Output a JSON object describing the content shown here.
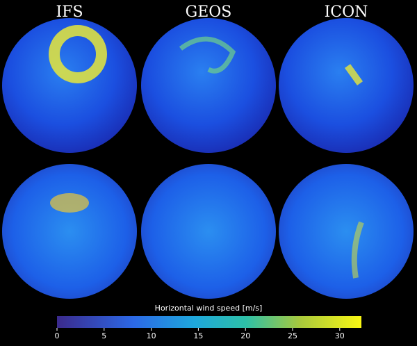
{
  "panels": [
    "IFS",
    "GEOS",
    "ICON"
  ],
  "colorbar": {
    "label": "Horizontal wind speed [m/s]",
    "lim": [
      0,
      32.3
    ],
    "ticks": [
      0,
      5,
      10,
      15,
      20,
      25,
      30
    ]
  }
}
